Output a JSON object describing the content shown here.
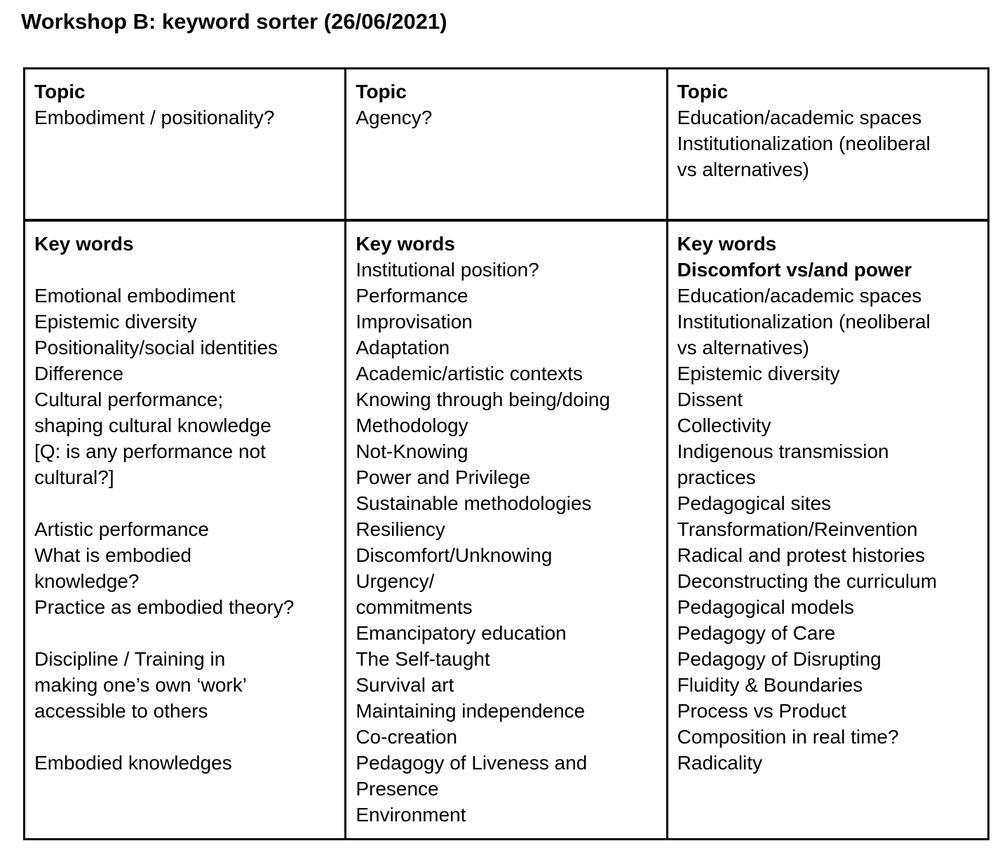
{
  "title": "Workshop B: keyword sorter (26/06/2021)",
  "table": {
    "columns": [
      {
        "topic": {
          "label": "Topic",
          "lines": [
            "Embodiment / positionality?"
          ]
        },
        "keywords": {
          "label": "Key words",
          "lines": [
            "",
            "Emotional embodiment",
            "Epistemic diversity",
            "Positionality/social identities",
            "Difference",
            "Cultural performance;",
            "shaping cultural knowledge",
            "[Q: is any performance not",
            "cultural?]",
            "",
            "Artistic performance",
            "What is embodied",
            "knowledge?",
            "Practice as embodied theory?",
            "",
            "Discipline / Training in",
            "making one’s own ‘work’",
            "accessible to others",
            "",
            "Embodied knowledges"
          ]
        }
      },
      {
        "topic": {
          "label": "Topic",
          "lines": [
            "Agency?"
          ]
        },
        "keywords": {
          "label": "Key words",
          "lines": [
            "Institutional position?",
            "Performance",
            "Improvisation",
            "Adaptation",
            "Academic/artistic contexts",
            "Knowing through being/doing",
            "Methodology",
            "Not-Knowing",
            "Power and Privilege",
            "Sustainable methodologies",
            "Resiliency",
            "Discomfort/Unknowing",
            "Urgency/",
            "commitments",
            "Emancipatory education",
            "The Self-taught",
            "Survival art",
            "Maintaining independence",
            "Co-creation",
            "Pedagogy of Liveness and",
            "Presence",
            "Environment"
          ]
        }
      },
      {
        "topic": {
          "label": "Topic",
          "lines": [
            "Education/academic spaces",
            "Institutionalization (neoliberal",
            "vs alternatives)"
          ]
        },
        "keywords": {
          "label": "Key words",
          "lines": [
            {
              "text": "Discomfort vs/and power",
              "bold": true
            },
            "Education/academic spaces",
            "Institutionalization (neoliberal",
            "vs alternatives)",
            "Epistemic diversity",
            "Dissent",
            "Collectivity",
            "Indigenous transmission",
            "practices",
            "Pedagogical sites",
            "Transformation/Reinvention",
            "Radical and protest histories",
            "Deconstructing the curriculum",
            "Pedagogical models",
            "Pedagogy of Care",
            "Pedagogy of Disrupting",
            "Fluidity & Boundaries",
            "Process vs Product",
            "Composition in real time?",
            "Radicality"
          ]
        }
      }
    ]
  }
}
